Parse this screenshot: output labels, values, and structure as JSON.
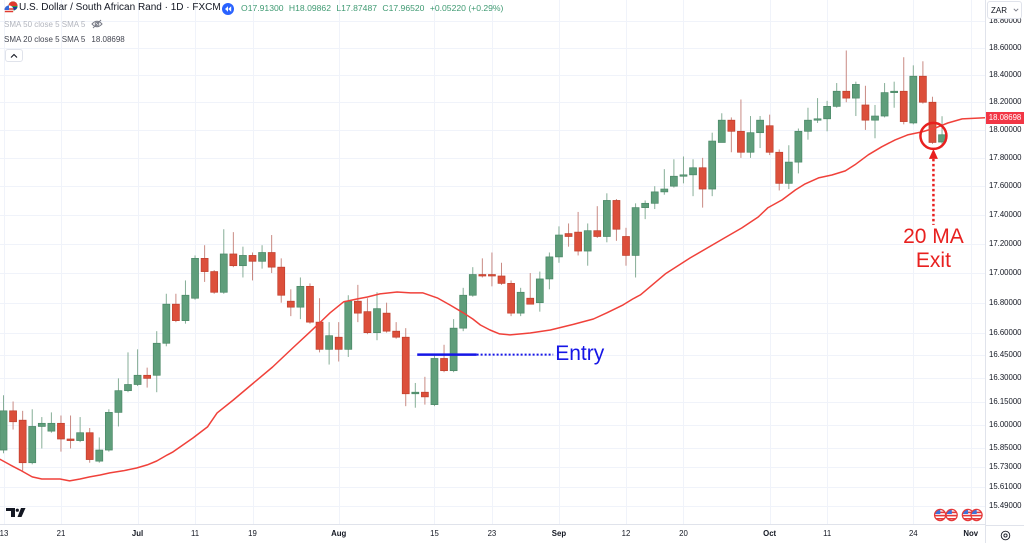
{
  "header": {
    "symbol_icon": "usd-zar-flags-icon",
    "symbol_title": "U.S. Dollar / South African Rand · 1D · FXCM",
    "replay_icon": "rewind-icon",
    "ohlc": {
      "open_label": "O",
      "open": "17.91300",
      "high_label": "H",
      "high": "18.09862",
      "low_label": "L",
      "low": "17.87487",
      "close_label": "C",
      "close": "17.96520",
      "change": "+0.05220 (+0.29%)"
    }
  },
  "indicators": [
    {
      "name": "SMA 50 close 5 SMA 5",
      "hidden": true,
      "icon": "eye-slash-icon"
    },
    {
      "name": "SMA 20 close 5 SMA 5",
      "value": "18.08698",
      "value_color": "#f23645"
    }
  ],
  "collapse_icon": "chevron-up-icon",
  "price_axis": {
    "currency": "ZAR",
    "current_sma_label": "18.08698",
    "current_sma_value": 18.08698
  },
  "time_axis": {
    "settings_icon": "settings-icon"
  },
  "annotations": {
    "entry": {
      "text": "Entry",
      "price": 16.455,
      "from_index": 43.2,
      "to_index": 49.4,
      "dotted_to_index": 57.4,
      "color": "#1616e6"
    },
    "exit": {
      "text_line1": "20 MA",
      "text_line2": "Exit",
      "index": 97.1,
      "price": 17.957,
      "arrow_tip_price": 17.864,
      "arrow_tail_price": 17.33,
      "color": "#e8201f"
    }
  },
  "events": [
    {
      "icon": "us-flag-icon",
      "index": 97.8
    },
    {
      "icon": "us-flag-icon",
      "index": 99.0
    },
    {
      "icon": "us-flag-icon",
      "index": 100.7
    },
    {
      "icon": "us-flag-icon",
      "index": 101.6
    }
  ],
  "colors": {
    "up": "#5f9e7b",
    "up_border": "#4a8766",
    "up_wick": "#86ae97",
    "down": "#dc4f3b",
    "down_border": "#bf3f2d",
    "down_wick": "#c98a83",
    "sma": "#f0413a",
    "grid": "#f0f3fa",
    "axis_border": "#e0e3eb",
    "sma_tag_bg": "#f23645"
  },
  "chart_data": {
    "type": "candlestick",
    "title": "U.S. Dollar / South African Rand · 1D · FXCM",
    "ylabel": "ZAR",
    "yscale": "log",
    "ylim": [
      15.45,
      18.85
    ],
    "grid": true,
    "y_ticks": [
      "18.80000",
      "18.60000",
      "18.40000",
      "18.20000",
      "18.00000",
      "17.80000",
      "17.60000",
      "17.40000",
      "17.20000",
      "17.00000",
      "16.80000",
      "16.60000",
      "16.45000",
      "16.30000",
      "16.15000",
      "16.00000",
      "15.85000",
      "15.73000",
      "15.61000",
      "15.49000"
    ],
    "x_ticks": [
      {
        "text": "13",
        "index": 0,
        "bold": false
      },
      {
        "text": "21",
        "index": 6,
        "bold": false
      },
      {
        "text": "Jul",
        "index": 14,
        "bold": true
      },
      {
        "text": "11",
        "index": 20,
        "bold": false
      },
      {
        "text": "19",
        "index": 26,
        "bold": false
      },
      {
        "text": "Aug",
        "index": 35,
        "bold": true
      },
      {
        "text": "15",
        "index": 45,
        "bold": false
      },
      {
        "text": "23",
        "index": 51,
        "bold": false
      },
      {
        "text": "Sep",
        "index": 58,
        "bold": true
      },
      {
        "text": "12",
        "index": 65,
        "bold": false
      },
      {
        "text": "20",
        "index": 71,
        "bold": false
      },
      {
        "text": "Oct",
        "index": 80,
        "bold": true
      },
      {
        "text": "11",
        "index": 86,
        "bold": false
      },
      {
        "text": "24",
        "index": 95,
        "bold": false
      },
      {
        "text": "Nov",
        "index": 101,
        "bold": true
      }
    ],
    "ohlc_order": [
      "open",
      "high",
      "low",
      "close"
    ],
    "ohlc": [
      [
        15.84,
        16.19,
        15.82,
        16.09
      ],
      [
        16.09,
        16.15,
        15.97,
        16.02
      ],
      [
        16.03,
        16.09,
        15.71,
        15.76
      ],
      [
        15.76,
        16.1,
        15.75,
        15.99
      ],
      [
        15.99,
        16.05,
        15.85,
        16.01
      ],
      [
        15.96,
        16.08,
        15.95,
        16.01
      ],
      [
        16.01,
        16.06,
        15.83,
        15.91
      ],
      [
        15.91,
        16.06,
        15.85,
        15.9
      ],
      [
        15.9,
        16.05,
        15.89,
        15.95
      ],
      [
        15.95,
        15.98,
        15.76,
        15.78
      ],
      [
        15.77,
        15.92,
        15.76,
        15.84
      ],
      [
        15.84,
        16.1,
        15.83,
        16.08
      ],
      [
        16.08,
        16.3,
        15.99,
        16.22
      ],
      [
        16.22,
        16.47,
        16.21,
        16.26
      ],
      [
        16.26,
        16.49,
        16.25,
        16.32
      ],
      [
        16.32,
        16.37,
        16.24,
        16.3
      ],
      [
        16.32,
        16.61,
        16.21,
        16.53
      ],
      [
        16.53,
        16.86,
        16.51,
        16.79
      ],
      [
        16.79,
        16.86,
        16.67,
        16.68
      ],
      [
        16.68,
        16.95,
        16.66,
        16.85
      ],
      [
        16.83,
        17.12,
        16.82,
        17.1
      ],
      [
        17.1,
        17.19,
        16.94,
        17.01
      ],
      [
        17.01,
        17.02,
        16.86,
        16.87
      ],
      [
        16.87,
        17.3,
        16.86,
        17.13
      ],
      [
        17.13,
        17.28,
        17.04,
        17.05
      ],
      [
        17.05,
        17.18,
        16.97,
        17.12
      ],
      [
        17.12,
        17.14,
        16.95,
        17.08
      ],
      [
        17.08,
        17.19,
        17.03,
        17.14
      ],
      [
        17.14,
        17.26,
        17.0,
        17.04
      ],
      [
        17.04,
        17.1,
        16.8,
        16.85
      ],
      [
        16.81,
        16.89,
        16.71,
        16.77
      ],
      [
        16.77,
        16.97,
        16.69,
        16.91
      ],
      [
        16.91,
        16.93,
        16.66,
        16.67
      ],
      [
        16.67,
        16.83,
        16.47,
        16.49
      ],
      [
        16.49,
        16.67,
        16.39,
        16.58
      ],
      [
        16.57,
        16.67,
        16.41,
        16.49
      ],
      [
        16.49,
        16.85,
        16.44,
        16.81
      ],
      [
        16.81,
        16.92,
        16.67,
        16.73
      ],
      [
        16.74,
        16.83,
        16.59,
        16.6
      ],
      [
        16.6,
        16.87,
        16.55,
        16.76
      ],
      [
        16.73,
        16.8,
        16.6,
        16.61
      ],
      [
        16.61,
        16.67,
        16.56,
        16.57
      ],
      [
        16.57,
        16.63,
        16.12,
        16.2
      ],
      [
        16.2,
        16.27,
        16.11,
        16.21
      ],
      [
        16.21,
        16.31,
        16.13,
        16.18
      ],
      [
        16.13,
        16.45,
        16.12,
        16.43
      ],
      [
        16.43,
        16.52,
        16.34,
        16.35
      ],
      [
        16.35,
        16.69,
        16.34,
        16.63
      ],
      [
        16.63,
        16.9,
        16.61,
        16.85
      ],
      [
        16.85,
        17.04,
        16.84,
        16.99
      ],
      [
        16.99,
        17.1,
        16.97,
        16.98
      ],
      [
        16.99,
        17.14,
        16.91,
        16.98
      ],
      [
        16.98,
        17.07,
        16.92,
        16.93
      ],
      [
        16.93,
        16.95,
        16.71,
        16.73
      ],
      [
        16.73,
        16.9,
        16.71,
        16.87
      ],
      [
        16.83,
        17.0,
        16.79,
        16.79
      ],
      [
        16.8,
        17.01,
        16.74,
        16.96
      ],
      [
        16.96,
        17.14,
        16.89,
        17.11
      ],
      [
        17.11,
        17.32,
        17.07,
        17.26
      ],
      [
        17.27,
        17.34,
        17.18,
        17.25
      ],
      [
        17.28,
        17.42,
        17.12,
        17.15
      ],
      [
        17.15,
        17.34,
        17.05,
        17.29
      ],
      [
        17.29,
        17.46,
        17.24,
        17.25
      ],
      [
        17.25,
        17.55,
        17.21,
        17.5
      ],
      [
        17.5,
        17.51,
        17.22,
        17.3
      ],
      [
        17.25,
        17.31,
        17.05,
        17.12
      ],
      [
        17.12,
        17.48,
        16.97,
        17.45
      ],
      [
        17.45,
        17.5,
        17.37,
        17.48
      ],
      [
        17.48,
        17.6,
        17.44,
        17.56
      ],
      [
        17.56,
        17.72,
        17.54,
        17.58
      ],
      [
        17.6,
        17.79,
        17.59,
        17.67
      ],
      [
        17.67,
        17.81,
        17.62,
        17.68
      ],
      [
        17.68,
        17.79,
        17.53,
        17.73
      ],
      [
        17.73,
        17.8,
        17.45,
        17.58
      ],
      [
        17.58,
        17.98,
        17.53,
        17.92
      ],
      [
        17.91,
        18.12,
        17.91,
        18.07
      ],
      [
        18.07,
        18.09,
        17.84,
        17.99
      ],
      [
        17.99,
        18.22,
        17.8,
        17.84
      ],
      [
        17.84,
        18.1,
        17.8,
        17.98
      ],
      [
        17.98,
        18.1,
        17.87,
        18.07
      ],
      [
        18.03,
        18.11,
        17.82,
        17.84
      ],
      [
        17.84,
        17.86,
        17.57,
        17.62
      ],
      [
        17.62,
        17.89,
        17.58,
        17.77
      ],
      [
        17.77,
        18.01,
        17.69,
        17.99
      ],
      [
        17.99,
        18.16,
        17.93,
        18.07
      ],
      [
        18.07,
        18.23,
        18.05,
        18.08
      ],
      [
        18.08,
        18.21,
        17.99,
        18.17
      ],
      [
        18.17,
        18.34,
        18.16,
        18.28
      ],
      [
        18.28,
        18.58,
        18.2,
        18.23
      ],
      [
        18.23,
        18.35,
        18.1,
        18.33
      ],
      [
        18.18,
        18.32,
        18.0,
        18.07
      ],
      [
        18.07,
        18.18,
        17.94,
        18.1
      ],
      [
        18.1,
        18.34,
        18.09,
        18.27
      ],
      [
        18.27,
        18.35,
        18.16,
        18.28
      ],
      [
        18.28,
        18.53,
        18.04,
        18.06
      ],
      [
        18.05,
        18.47,
        18.04,
        18.39
      ],
      [
        18.39,
        18.5,
        18.19,
        18.2
      ],
      [
        18.2,
        18.24,
        17.9,
        17.91
      ],
      [
        17.913,
        18.0986,
        17.8749,
        17.9652
      ]
    ],
    "series": [
      {
        "name": "SMA 20 close 5 SMA 5",
        "color": "#f0413a",
        "last_value": 18.08698,
        "points": [
          [
            -0.4,
            15.783
          ],
          [
            0.7,
            15.746
          ],
          [
            1.7,
            15.715
          ],
          [
            3.0,
            15.671
          ],
          [
            4.0,
            15.658
          ],
          [
            5.9,
            15.658
          ],
          [
            6.9,
            15.646
          ],
          [
            8.0,
            15.658
          ],
          [
            9.0,
            15.671
          ],
          [
            10.1,
            15.683
          ],
          [
            11.1,
            15.696
          ],
          [
            12.5,
            15.709
          ],
          [
            13.9,
            15.727
          ],
          [
            15.0,
            15.746
          ],
          [
            16.0,
            15.771
          ],
          [
            17.1,
            15.809
          ],
          [
            17.7,
            15.828
          ],
          [
            19.8,
            15.917
          ],
          [
            21.3,
            15.987
          ],
          [
            22.3,
            16.077
          ],
          [
            24.0,
            16.16
          ],
          [
            26.1,
            16.27
          ],
          [
            28.1,
            16.374
          ],
          [
            30.2,
            16.499
          ],
          [
            32.0,
            16.605
          ],
          [
            33.1,
            16.671
          ],
          [
            34.1,
            16.732
          ],
          [
            35.5,
            16.805
          ],
          [
            36.9,
            16.825
          ],
          [
            38.0,
            16.838
          ],
          [
            39.3,
            16.859
          ],
          [
            41.1,
            16.872
          ],
          [
            42.5,
            16.866
          ],
          [
            43.8,
            16.866
          ],
          [
            45.3,
            16.832
          ],
          [
            46.6,
            16.785
          ],
          [
            48.0,
            16.732
          ],
          [
            49.0,
            16.691
          ],
          [
            49.8,
            16.651
          ],
          [
            50.8,
            16.618
          ],
          [
            51.8,
            16.592
          ],
          [
            52.9,
            16.585
          ],
          [
            55.0,
            16.598
          ],
          [
            57.1,
            16.618
          ],
          [
            59.5,
            16.655
          ],
          [
            61.6,
            16.691
          ],
          [
            63.0,
            16.732
          ],
          [
            64.7,
            16.785
          ],
          [
            65.7,
            16.825
          ],
          [
            66.5,
            16.852
          ],
          [
            69.1,
            16.994
          ],
          [
            71.7,
            17.103
          ],
          [
            75.3,
            17.24
          ],
          [
            77.1,
            17.309
          ],
          [
            78.8,
            17.385
          ],
          [
            79.8,
            17.448
          ],
          [
            81.3,
            17.504
          ],
          [
            82.7,
            17.574
          ],
          [
            83.7,
            17.616
          ],
          [
            85.1,
            17.658
          ],
          [
            86.5,
            17.679
          ],
          [
            87.9,
            17.708
          ],
          [
            88.9,
            17.751
          ],
          [
            90.3,
            17.822
          ],
          [
            91.7,
            17.879
          ],
          [
            93.1,
            17.928
          ],
          [
            94.4,
            17.964
          ],
          [
            95.9,
            17.986
          ],
          [
            97.3,
            18.014
          ],
          [
            98.6,
            18.05
          ],
          [
            100.1,
            18.079
          ],
          [
            102.5,
            18.087
          ]
        ]
      }
    ]
  }
}
